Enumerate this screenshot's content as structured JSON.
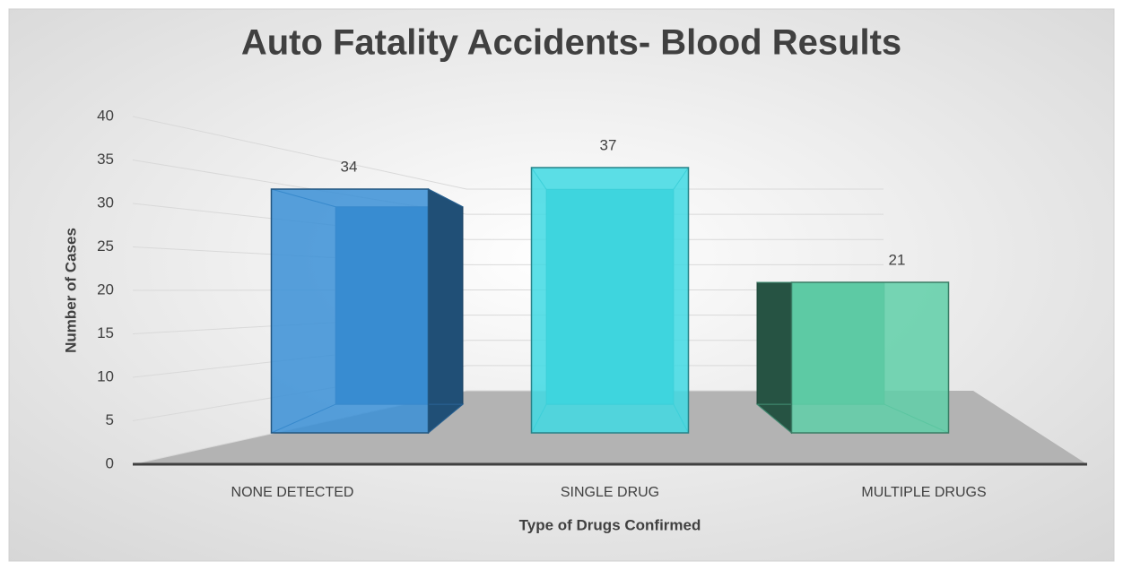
{
  "chart_data": {
    "type": "bar3d",
    "title": "Auto Fatality Accidents- Blood Results",
    "x_label": "Type of Drugs Confirmed",
    "y_label": "Number of Cases",
    "categories": [
      "NONE DETECTED",
      "SINGLE DRUG",
      "MULTIPLE DRUGS"
    ],
    "values": [
      34,
      37,
      21
    ],
    "colors": [
      "#3a8fd6",
      "#3fd9e3",
      "#5fcfa8"
    ],
    "ylim": [
      0,
      40
    ],
    "yticks": [
      0,
      5,
      10,
      15,
      20,
      25,
      30,
      35,
      40
    ],
    "grid": true
  }
}
